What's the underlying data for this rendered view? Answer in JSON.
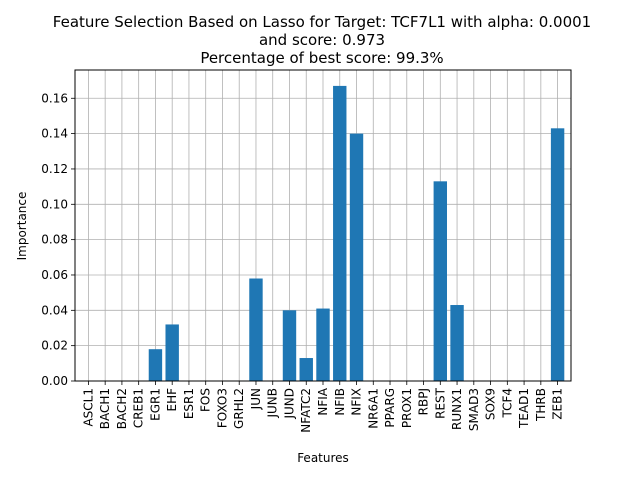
{
  "chart_data": {
    "type": "bar",
    "title_lines": [
      "Feature Selection Based on Lasso for Target: TCF7L1 with alpha: 0.0001",
      "and score: 0.973",
      "Percentage of best score: 99.3%"
    ],
    "xlabel": "Features",
    "ylabel": "Importance",
    "categories": [
      "ASCL1",
      "BACH1",
      "BACH2",
      "CREB1",
      "EGR1",
      "EHF",
      "ESR1",
      "FOS",
      "FOXO3",
      "GRHL2",
      "JUN",
      "JUNB",
      "JUND",
      "NFATC2",
      "NFIA",
      "NFIB",
      "NFIX",
      "NR6A1",
      "PPARG",
      "PROX1",
      "RBPJ",
      "REST",
      "RUNX1",
      "SMAD3",
      "SOX9",
      "TCF4",
      "TEAD1",
      "THRB",
      "ZEB1"
    ],
    "values": [
      0,
      0,
      0,
      0,
      0.018,
      0.032,
      0,
      0,
      0,
      0,
      0.058,
      0,
      0.04,
      0.013,
      0.041,
      0.167,
      0.14,
      0,
      0,
      0,
      0,
      0.113,
      0.043,
      0,
      0,
      0,
      0,
      0,
      0.143
    ],
    "ylim": [
      0,
      0.176
    ],
    "yticks": [
      "0.00",
      "0.02",
      "0.04",
      "0.06",
      "0.08",
      "0.10",
      "0.12",
      "0.14",
      "0.16"
    ],
    "grid": true,
    "bar_color": "#1f77b4"
  }
}
